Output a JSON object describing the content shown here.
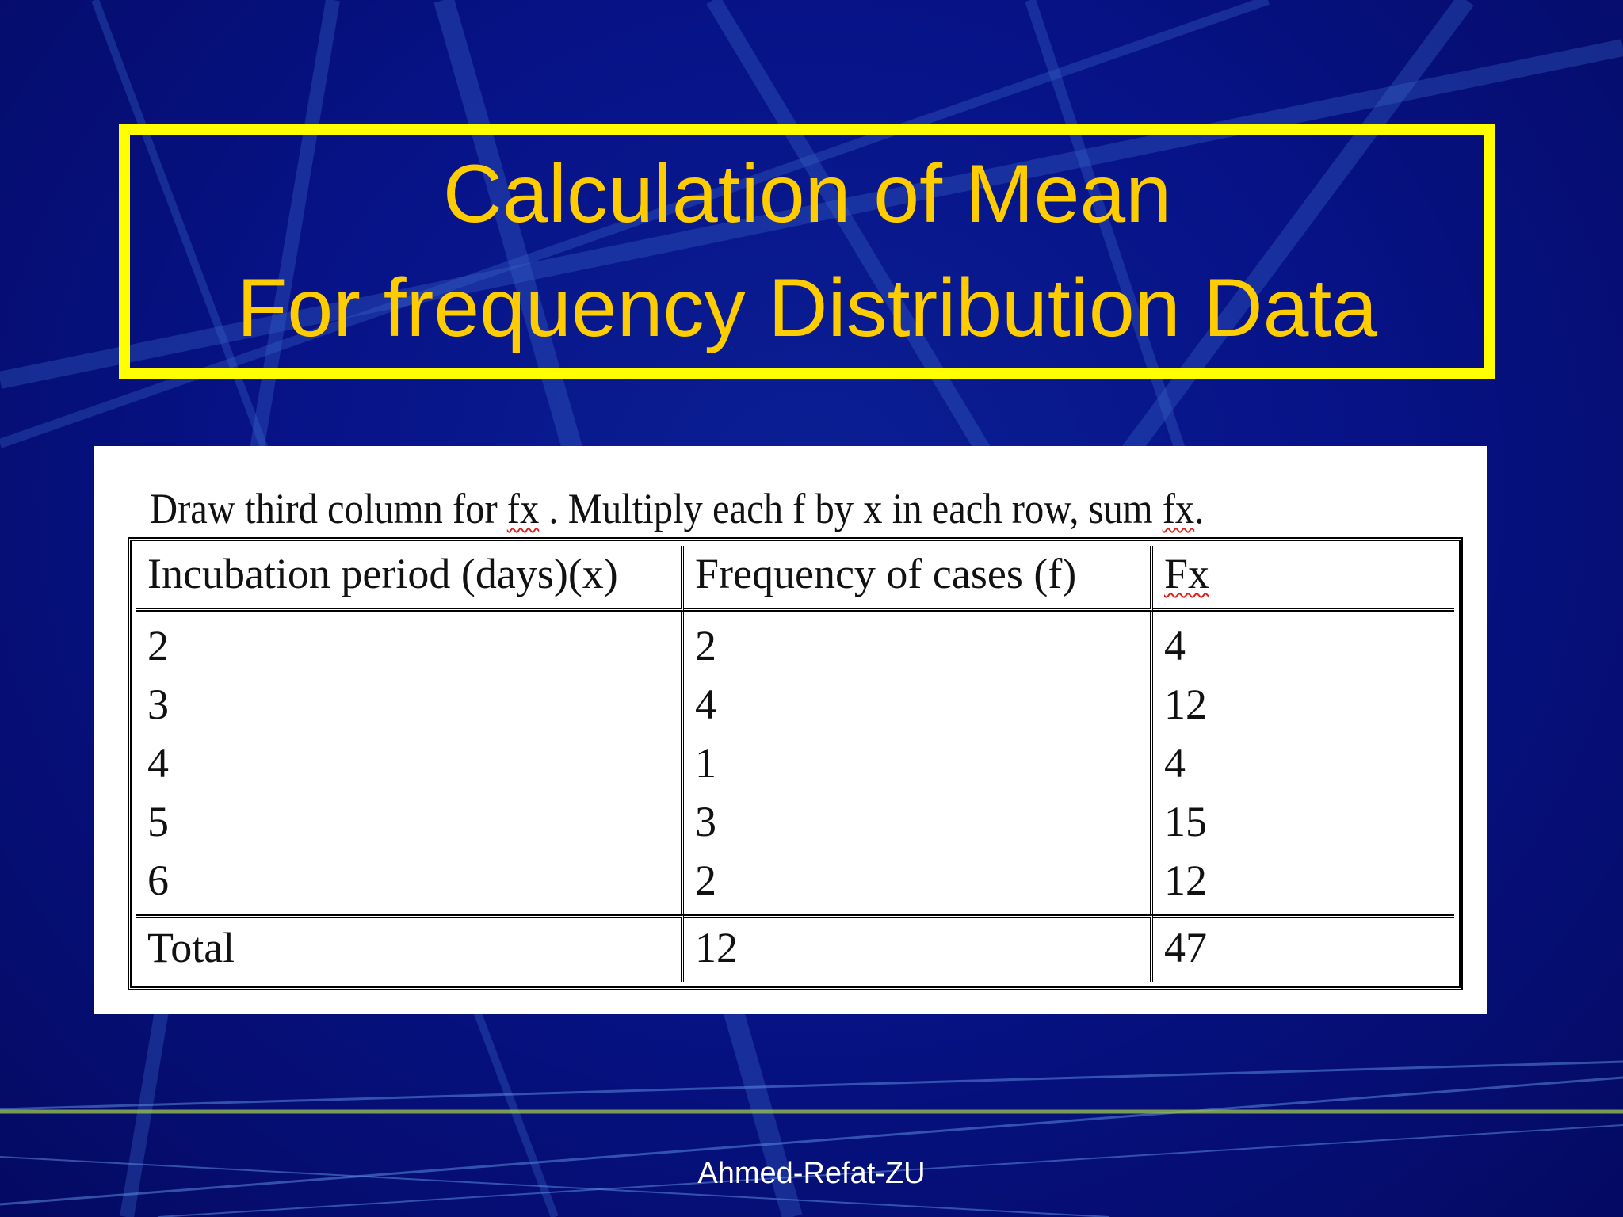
{
  "slide": {
    "title_line1": "Calculation of Mean",
    "title_line2": "For frequency Distribution Data",
    "footer": "Ahmed-Refat-ZU"
  },
  "instruction": {
    "part1": "Draw third column for ",
    "fx1": "fx",
    "part2": " . Multiply each f by x in each row, sum ",
    "fx2": "fx",
    "part3": "."
  },
  "table": {
    "headers": [
      "Incubation period (days)(x)",
      "Frequency of cases (f)",
      "Fx"
    ],
    "rows": [
      [
        "2",
        "2",
        "4"
      ],
      [
        "3",
        "4",
        "12"
      ],
      [
        "4",
        "1",
        "4"
      ],
      [
        "5",
        "3",
        "15"
      ],
      [
        "6",
        "2",
        "12"
      ]
    ],
    "total": [
      "Total",
      "12",
      "47"
    ]
  },
  "colors": {
    "background": "#071388",
    "title_text": "#ffcc00",
    "title_border": "#ffff00",
    "footer_text": "#ffffff"
  }
}
